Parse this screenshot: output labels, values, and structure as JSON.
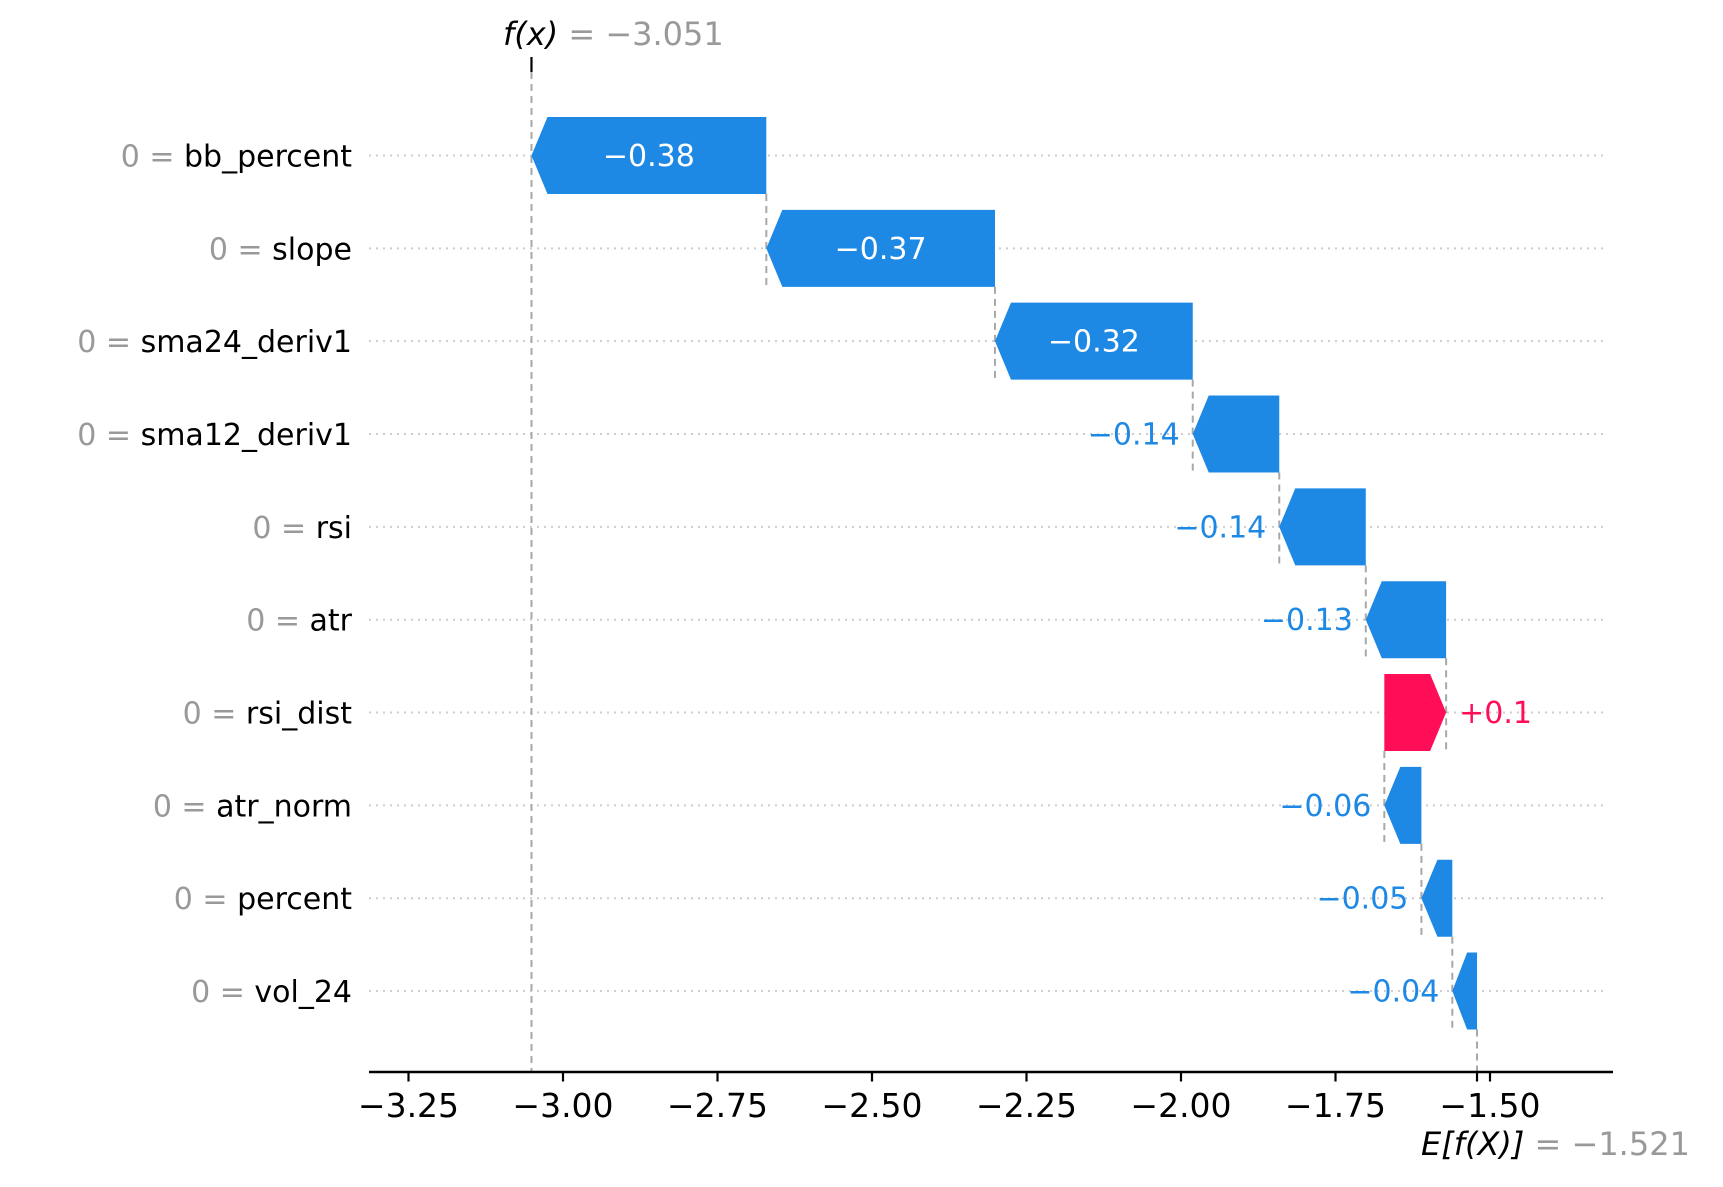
{
  "chart_data": {
    "type": "bar",
    "variant": "shap-waterfall",
    "title": "",
    "xlabel": "",
    "ylabel": "",
    "grid": "dotted-horizontal-per-row",
    "legend": "none",
    "xlim": [
      -3.314,
      -1.301
    ],
    "fx": {
      "name_label": "f(x)",
      "value": -3.051,
      "equals_value_label": " = −3.051"
    },
    "base": {
      "name_label": "E[f(X)]",
      "value": -1.521,
      "equals_value_label": " = −1.521"
    },
    "features": [
      {
        "feature_value": "0",
        "name": "bb_percent",
        "shap": -0.38,
        "label": "−0.38",
        "label_position": "inside"
      },
      {
        "feature_value": "0",
        "name": "slope",
        "shap": -0.37,
        "label": "−0.37",
        "label_position": "inside"
      },
      {
        "feature_value": "0",
        "name": "sma24_deriv1",
        "shap": -0.32,
        "label": "−0.32",
        "label_position": "inside"
      },
      {
        "feature_value": "0",
        "name": "sma12_deriv1",
        "shap": -0.14,
        "label": "−0.14",
        "label_position": "outside"
      },
      {
        "feature_value": "0",
        "name": "rsi",
        "shap": -0.14,
        "label": "−0.14",
        "label_position": "outside"
      },
      {
        "feature_value": "0",
        "name": "atr",
        "shap": -0.13,
        "label": "−0.13",
        "label_position": "outside"
      },
      {
        "feature_value": "0",
        "name": "rsi_dist",
        "shap": 0.1,
        "label": "+0.1",
        "label_position": "outside"
      },
      {
        "feature_value": "0",
        "name": "atr_norm",
        "shap": -0.06,
        "label": "−0.06",
        "label_position": "outside"
      },
      {
        "feature_value": "0",
        "name": "percent",
        "shap": -0.05,
        "label": "−0.05",
        "label_position": "outside"
      },
      {
        "feature_value": "0",
        "name": "vol_24",
        "shap": -0.04,
        "label": "−0.04",
        "label_position": "outside"
      }
    ],
    "x_axis": {
      "ticks": [
        -3.25,
        -3.0,
        -2.75,
        -2.5,
        -2.25,
        -2.0,
        -1.75,
        -1.5
      ],
      "tick_labels": [
        "−3.25",
        "−3.00",
        "−2.75",
        "−2.50",
        "−2.25",
        "−2.00",
        "−1.75",
        "−1.50"
      ]
    },
    "colors": {
      "negative_bar": "#1e88e5",
      "positive_bar": "#ff0d57",
      "bar_inner_text": "#ffffff",
      "gray_text": "#999999",
      "axis_text": "#000000",
      "dashed_line": "#a8a8a8",
      "dotted_gridline": "#cdcdcd",
      "axis_line": "#000000"
    }
  }
}
